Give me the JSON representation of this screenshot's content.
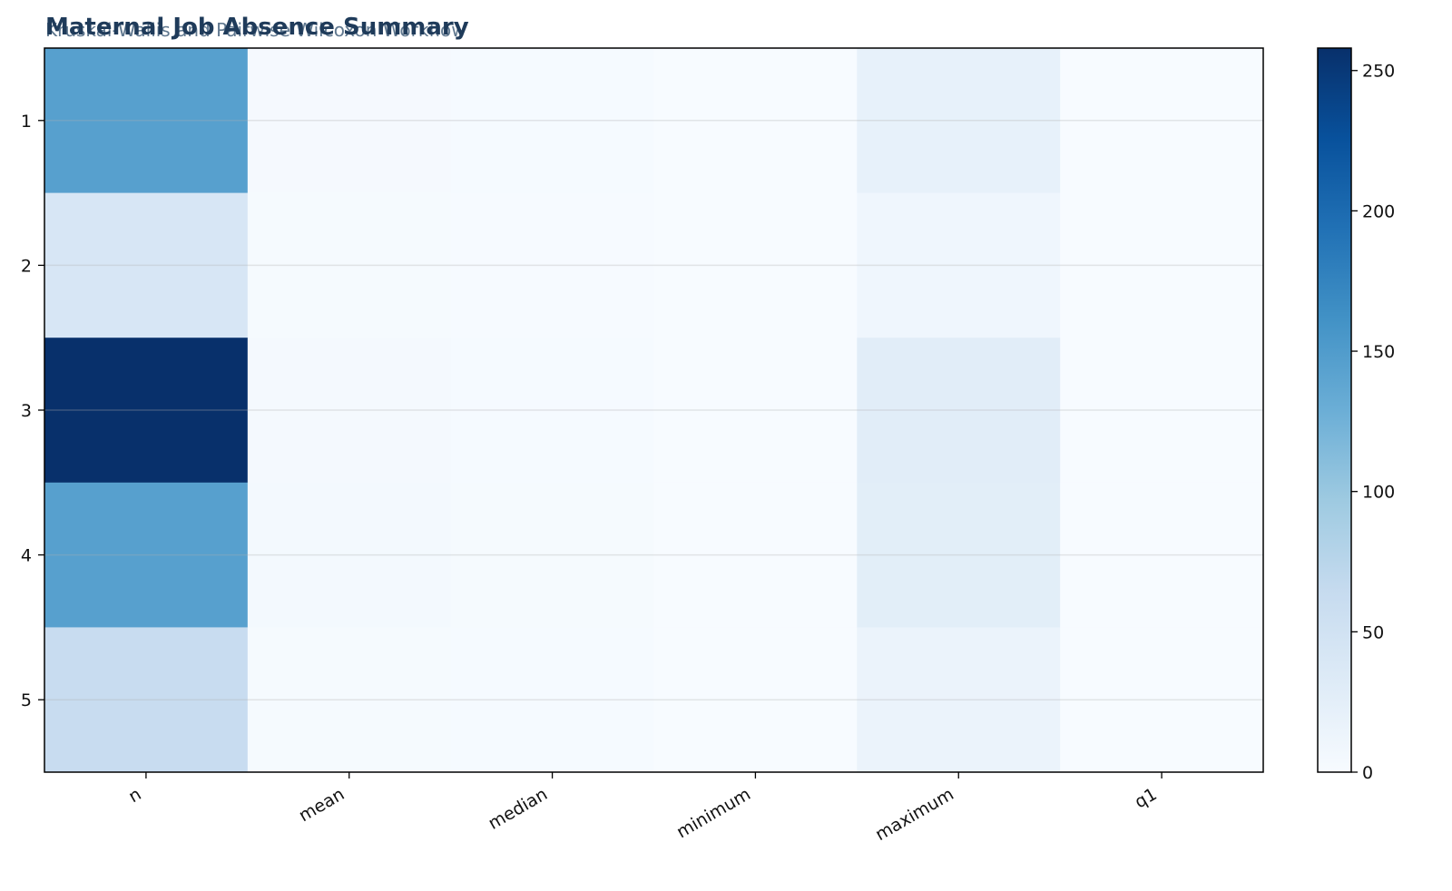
{
  "chart_data": {
    "type": "heatmap",
    "title": "Maternal Job Absence Summary",
    "subtitle": "Kruskal-Wallis and Pairwise Wilcoxon Workflow",
    "rows": [
      "1",
      "2",
      "3",
      "4",
      "5"
    ],
    "columns": [
      "n",
      "mean",
      "median",
      "minimum",
      "maximum",
      "q1"
    ],
    "values": [
      [
        145,
        3.2,
        2.0,
        0.0,
        20.0,
        0.0
      ],
      [
        42,
        2.8,
        1.5,
        0.0,
        10.0,
        0.0
      ],
      [
        258,
        3.5,
        2.0,
        0.0,
        28.0,
        0.0
      ],
      [
        145,
        5.0,
        2.5,
        0.0,
        27.0,
        0.0
      ],
      [
        62,
        3.0,
        2.0,
        0.0,
        16.0,
        0.0
      ]
    ],
    "colorbar": {
      "min": 0,
      "max": 258,
      "ticks": [
        "0",
        "50",
        "100",
        "150",
        "200",
        "250"
      ],
      "colormap": "Blues"
    },
    "grid": "horizontal"
  }
}
